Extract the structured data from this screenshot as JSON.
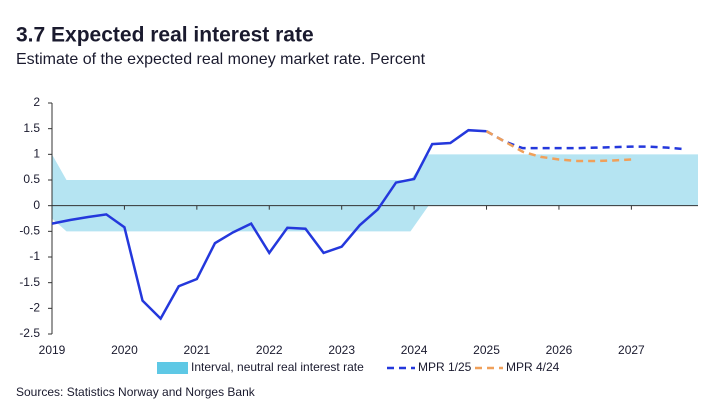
{
  "chart_data": {
    "type": "line",
    "title": "3.7 Expected real interest rate",
    "subtitle": "Estimate of the expected real money market rate. Percent",
    "source": "Sources: Statistics Norway and Norges Bank",
    "xlim": [
      2019,
      2027.92
    ],
    "xticks": [
      2019,
      2020,
      2021,
      2022,
      2023,
      2024,
      2025,
      2026,
      2027
    ],
    "ylim": [
      -2.5,
      2
    ],
    "yticks": [
      2,
      1.5,
      1,
      0.5,
      0,
      -0.5,
      -1,
      -1.5,
      -2,
      -2.5
    ],
    "forecast_start": 2025,
    "band": {
      "name": "Interval, neutral real interest rate",
      "color": "#b5e4f2",
      "legend_color": "#5ec8e5",
      "x": [
        2019,
        2019.2,
        2023.95,
        2024.2,
        2027.92
      ],
      "upper": [
        1,
        0.5,
        0.5,
        1,
        1
      ],
      "lower": [
        -0.25,
        -0.5,
        -0.5,
        0,
        0
      ]
    },
    "series": [
      {
        "name": "MPR 1/25",
        "color": "#2438dc",
        "x": [
          2019,
          2019.25,
          2019.5,
          2019.75,
          2020,
          2020.25,
          2020.5,
          2020.75,
          2021,
          2021.25,
          2021.5,
          2021.75,
          2022,
          2022.25,
          2022.5,
          2022.75,
          2023,
          2023.25,
          2023.5,
          2023.75,
          2024,
          2024.25,
          2024.5,
          2024.75,
          2025,
          2025.25,
          2025.5,
          2025.75,
          2026,
          2026.25,
          2026.5,
          2026.75,
          2027,
          2027.25,
          2027.5,
          2027.75
        ],
        "values": [
          -0.35,
          -0.28,
          -0.22,
          -0.17,
          -0.42,
          -1.85,
          -2.2,
          -1.57,
          -1.43,
          -0.73,
          -0.52,
          -0.35,
          -0.92,
          -0.43,
          -0.45,
          -0.92,
          -0.8,
          -0.38,
          -0.07,
          0.45,
          0.52,
          1.2,
          1.22,
          1.47,
          1.45,
          1.25,
          1.12,
          1.12,
          1.12,
          1.12,
          1.13,
          1.14,
          1.15,
          1.15,
          1.13,
          1.1
        ]
      },
      {
        "name": "MPR 4/24",
        "color": "#f0a05a",
        "x": [
          2025,
          2025.25,
          2025.5,
          2025.75,
          2026,
          2026.25,
          2026.5,
          2026.75,
          2027
        ],
        "values": [
          1.45,
          1.25,
          1.05,
          0.95,
          0.9,
          0.87,
          0.87,
          0.88,
          0.9
        ]
      }
    ]
  }
}
